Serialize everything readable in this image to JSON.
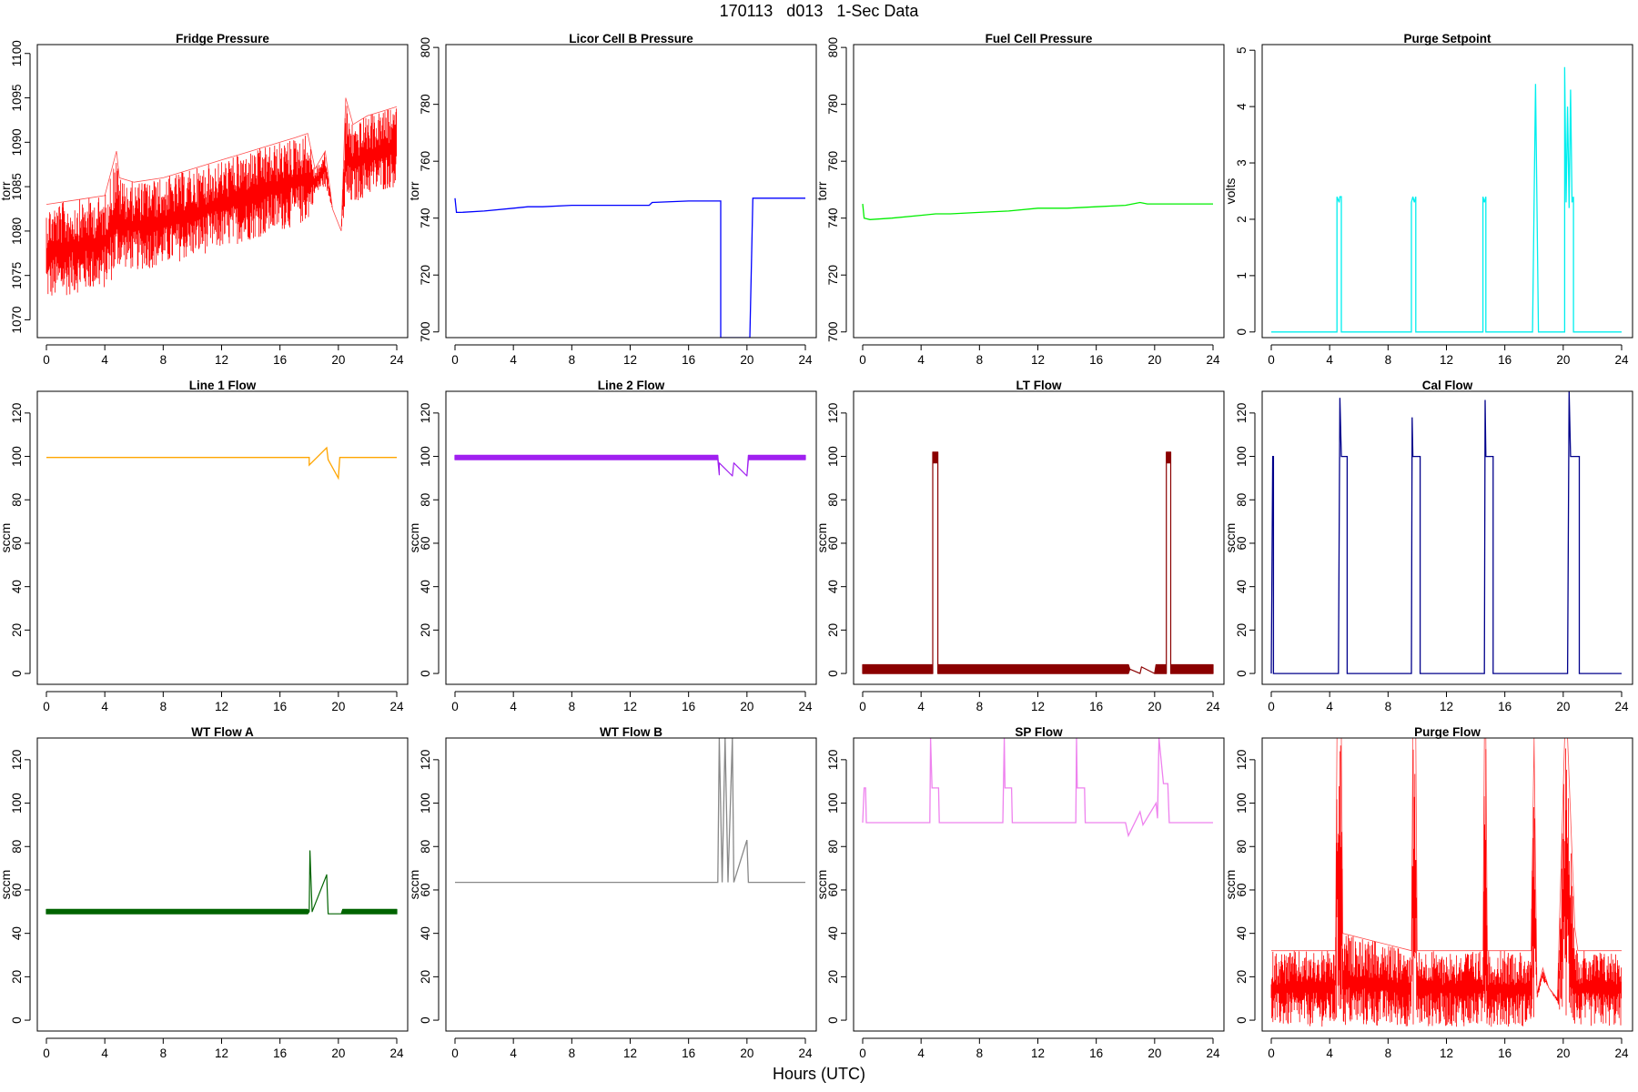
{
  "figure": {
    "title": "170113   d013   1-Sec Data",
    "xlabel": "Hours (UTC)"
  },
  "chart_data": [
    {
      "type": "line",
      "title": "Fridge Pressure",
      "ylabel": "torr",
      "color": "#ff0000",
      "xlim": [
        0,
        24
      ],
      "ylim": [
        1068,
        1101
      ],
      "xticks": [
        0,
        4,
        8,
        12,
        16,
        20,
        24
      ],
      "yticks": [
        1070,
        1075,
        1080,
        1085,
        1090,
        1095,
        1100
      ],
      "style": "noisy",
      "x": [
        0,
        2,
        4,
        4.8,
        5,
        6,
        8,
        10,
        12,
        14,
        16,
        17,
        17.9,
        18.4,
        19.1,
        19.6,
        20.2,
        20.5,
        21,
        22,
        23,
        24
      ],
      "ymin": [
        1072,
        1073,
        1073.5,
        1075,
        1076,
        1075.5,
        1076,
        1077,
        1078,
        1079,
        1080,
        1080.5,
        1081,
        1084,
        1085,
        1082.5,
        1080,
        1082,
        1083,
        1084,
        1084.5,
        1085
      ],
      "ymax": [
        1083,
        1083.5,
        1084,
        1089,
        1086,
        1085.5,
        1086,
        1087,
        1088,
        1089,
        1090,
        1090.5,
        1091,
        1087,
        1089,
        1082.5,
        1080,
        1095,
        1092,
        1093,
        1093.5,
        1094
      ]
    },
    {
      "type": "line",
      "title": "Licor Cell B Pressure",
      "ylabel": "torr",
      "color": "#0000ff",
      "xlim": [
        0,
        24
      ],
      "ylim": [
        698,
        801
      ],
      "xticks": [
        0,
        4,
        8,
        12,
        16,
        20,
        24
      ],
      "yticks": [
        700,
        720,
        740,
        760,
        780,
        800
      ],
      "style": "line",
      "x": [
        0,
        0.1,
        0.4,
        2,
        4,
        5,
        6,
        8,
        10,
        12,
        13.3,
        13.5,
        16,
        18.2,
        18.2,
        19,
        20.2,
        20.4,
        21,
        22,
        24
      ],
      "y": [
        747,
        742,
        742,
        742.5,
        743.5,
        744,
        744,
        744.5,
        744.5,
        744.5,
        744.5,
        745.5,
        746,
        746,
        698,
        698,
        698,
        747,
        747,
        747,
        747
      ]
    },
    {
      "type": "line",
      "title": "Fuel Cell Pressure",
      "ylabel": "torr",
      "color": "#00ee00",
      "xlim": [
        0,
        24
      ],
      "ylim": [
        698,
        801
      ],
      "xticks": [
        0,
        4,
        8,
        12,
        16,
        20,
        24
      ],
      "yticks": [
        700,
        720,
        740,
        760,
        780,
        800
      ],
      "style": "line",
      "x": [
        0,
        0.1,
        0.5,
        2,
        4,
        5,
        6,
        8,
        10,
        12,
        14,
        16,
        18,
        19,
        19.5,
        20,
        22,
        24
      ],
      "y": [
        745,
        740,
        739.5,
        740,
        741,
        741.5,
        741.5,
        742,
        742.5,
        743.5,
        743.5,
        744,
        744.5,
        745.5,
        745,
        745,
        745,
        745
      ]
    },
    {
      "type": "line",
      "title": "Purge Setpoint",
      "ylabel": "volts",
      "color": "#00eeee",
      "xlim": [
        0,
        24
      ],
      "ylim": [
        -0.1,
        5.1
      ],
      "xticks": [
        0,
        4,
        8,
        12,
        16,
        20,
        24
      ],
      "yticks": [
        0,
        1,
        2,
        3,
        4,
        5
      ],
      "style": "line",
      "x": [
        0,
        4.5,
        4.5,
        4.65,
        4.7,
        4.8,
        4.8,
        9.6,
        9.6,
        9.7,
        9.8,
        9.9,
        9.9,
        14.5,
        14.5,
        14.6,
        14.7,
        14.7,
        17.9,
        18.1,
        18.3,
        20.1,
        20.1,
        20.2,
        20.3,
        20.4,
        20.5,
        20.6,
        20.7,
        20.7,
        24
      ],
      "y": [
        0,
        0,
        2.4,
        2.3,
        2.4,
        2.4,
        0,
        0,
        2.3,
        2.4,
        2.3,
        2.4,
        0,
        0,
        2.4,
        2.3,
        2.4,
        0,
        0,
        4.4,
        0,
        0,
        4.7,
        2.3,
        4.0,
        2.2,
        4.3,
        2.3,
        2.4,
        0,
        0
      ]
    },
    {
      "type": "line",
      "title": "Line 1 Flow",
      "ylabel": "sccm",
      "color": "#ffa500",
      "xlim": [
        0,
        24
      ],
      "ylim": [
        -5,
        130
      ],
      "xticks": [
        0,
        4,
        8,
        12,
        16,
        20,
        24
      ],
      "yticks": [
        0,
        20,
        40,
        60,
        80,
        100,
        120
      ],
      "style": "line",
      "x": [
        0,
        18,
        18,
        19.2,
        19.3,
        20,
        20.1,
        24
      ],
      "y": [
        99.5,
        99.5,
        96,
        104,
        98.5,
        90,
        99.5,
        99.5
      ]
    },
    {
      "type": "line",
      "title": "Line 2 Flow",
      "ylabel": "sccm",
      "color": "#a020f0",
      "xlim": [
        0,
        24
      ],
      "ylim": [
        -5,
        130
      ],
      "xticks": [
        0,
        4,
        8,
        12,
        16,
        20,
        24
      ],
      "yticks": [
        0,
        20,
        40,
        60,
        80,
        100,
        120
      ],
      "style": "band",
      "x": [
        0,
        18,
        18.1,
        18.1,
        19,
        19.1,
        20,
        20.1,
        20.1,
        24
      ],
      "ymin": [
        98.5,
        98.5,
        91.5,
        97,
        91,
        97,
        91,
        98.5,
        98.5,
        98.5
      ],
      "ymax": [
        100.5,
        100.5,
        91.5,
        97,
        91,
        97,
        91,
        100.5,
        100.5,
        100.5
      ]
    },
    {
      "type": "line",
      "title": "LT Flow",
      "ylabel": "sccm",
      "color": "#8b0000",
      "xlim": [
        0,
        24
      ],
      "ylim": [
        -5,
        130
      ],
      "xticks": [
        0,
        4,
        8,
        12,
        16,
        20,
        24
      ],
      "yticks": [
        0,
        20,
        40,
        60,
        80,
        100,
        120
      ],
      "style": "band",
      "x": [
        0,
        4.8,
        4.8,
        5.15,
        5.15,
        18.2,
        18.3,
        19,
        19.1,
        20,
        20.1,
        20.8,
        20.8,
        21.1,
        21.1,
        24
      ],
      "ymin": [
        0,
        0,
        97,
        97,
        0,
        0,
        2,
        0,
        3,
        0,
        0,
        0,
        97,
        97,
        0,
        0
      ],
      "ymax": [
        4,
        4,
        102,
        102,
        4,
        4,
        2,
        0,
        3,
        0,
        4,
        4,
        102,
        102,
        4,
        4
      ]
    },
    {
      "type": "line",
      "title": "Cal Flow",
      "ylabel": "sccm",
      "color": "#00008b",
      "xlim": [
        0,
        24
      ],
      "ylim": [
        -5,
        130
      ],
      "xticks": [
        0,
        4,
        8,
        12,
        16,
        20,
        24
      ],
      "yticks": [
        0,
        20,
        40,
        60,
        80,
        100,
        120
      ],
      "style": "line",
      "x": [
        0,
        0.1,
        0.15,
        0.15,
        4.6,
        4.7,
        4.8,
        5.2,
        5.2,
        9.6,
        9.65,
        9.7,
        10.2,
        10.2,
        14.6,
        14.65,
        14.7,
        15.2,
        15.2,
        18.2,
        19,
        20.3,
        20.4,
        20.5,
        21.1,
        21.1,
        24
      ],
      "y": [
        0,
        100,
        100,
        0,
        0,
        127,
        100,
        100,
        0,
        0,
        118,
        100,
        100,
        0,
        0,
        126,
        100,
        100,
        0,
        0,
        0,
        0,
        130,
        100,
        100,
        0,
        0
      ]
    },
    {
      "type": "line",
      "title": "WT Flow A",
      "ylabel": "sccm",
      "color": "#006400",
      "xlim": [
        0,
        24
      ],
      "ylim": [
        -5,
        130
      ],
      "xticks": [
        0,
        4,
        8,
        12,
        16,
        20,
        24
      ],
      "yticks": [
        0,
        20,
        40,
        60,
        80,
        100,
        120
      ],
      "style": "band",
      "x": [
        0,
        17.9,
        18,
        18.05,
        18.2,
        19.2,
        19.3,
        20.2,
        20.3,
        24
      ],
      "ymin": [
        49,
        49,
        50,
        78,
        50,
        67,
        49,
        49,
        49,
        49
      ],
      "ymax": [
        51,
        51,
        50,
        78,
        50,
        67,
        49,
        49,
        51,
        51
      ]
    },
    {
      "type": "line",
      "title": "WT Flow B",
      "ylabel": "sccm",
      "color": "#888888",
      "xlim": [
        0,
        24
      ],
      "ylim": [
        -5,
        130
      ],
      "xticks": [
        0,
        4,
        8,
        12,
        16,
        20,
        24
      ],
      "yticks": [
        0,
        20,
        40,
        60,
        80,
        100,
        120
      ],
      "style": "line",
      "x": [
        0,
        18,
        18.1,
        18.3,
        18.5,
        18.7,
        19,
        19.1,
        20,
        20.1,
        24
      ],
      "y": [
        63.5,
        63.5,
        130,
        63.5,
        130,
        63.5,
        130,
        63.5,
        83,
        63.5,
        63.5
      ]
    },
    {
      "type": "line",
      "title": "SP Flow",
      "ylabel": "sccm",
      "color": "#ee82ee",
      "xlim": [
        0,
        24
      ],
      "ylim": [
        -5,
        130
      ],
      "xticks": [
        0,
        4,
        8,
        12,
        16,
        20,
        24
      ],
      "yticks": [
        0,
        20,
        40,
        60,
        80,
        100,
        120
      ],
      "style": "line",
      "x": [
        0,
        0.1,
        0.2,
        0.25,
        4.6,
        4.65,
        4.75,
        5.2,
        5.25,
        9.6,
        9.7,
        9.75,
        10.2,
        10.25,
        14.6,
        14.65,
        14.7,
        15.2,
        15.25,
        18,
        18.2,
        19,
        19.2,
        20.1,
        20.2,
        20.3,
        20.6,
        20.9,
        21,
        24
      ],
      "y": [
        91,
        107,
        107,
        91,
        91,
        130,
        107,
        107,
        91,
        91,
        130,
        107,
        107,
        91,
        91,
        130,
        107,
        107,
        91,
        91,
        85,
        96,
        90,
        100,
        93,
        130,
        109,
        109,
        91,
        91
      ]
    },
    {
      "type": "line",
      "title": "Purge Flow",
      "ylabel": "sccm",
      "color": "#ff0000",
      "xlim": [
        0,
        24
      ],
      "ylim": [
        -5,
        130
      ],
      "xticks": [
        0,
        4,
        8,
        12,
        16,
        20,
        24
      ],
      "yticks": [
        0,
        20,
        40,
        60,
        80,
        100,
        120
      ],
      "style": "noisy",
      "x": [
        0,
        4.4,
        4.5,
        4.8,
        4.9,
        9.6,
        9.7,
        9.9,
        10,
        14.5,
        14.6,
        14.7,
        14.8,
        17.8,
        18,
        18.2,
        18.6,
        19,
        19.6,
        20.1,
        20.3,
        20.8,
        21,
        24
      ],
      "ymin": [
        -3,
        -3,
        -3,
        -3,
        -3,
        -3,
        -3,
        -3,
        -3,
        -3,
        -3,
        -3,
        -3,
        -3,
        -3,
        10,
        18,
        15,
        8,
        -3,
        -3,
        -3,
        -3,
        -3
      ],
      "ymax": [
        32,
        32,
        130,
        130,
        40,
        32,
        130,
        130,
        32,
        32,
        130,
        130,
        32,
        32,
        130,
        12,
        24,
        15,
        10,
        130,
        130,
        42,
        32,
        32
      ]
    }
  ]
}
